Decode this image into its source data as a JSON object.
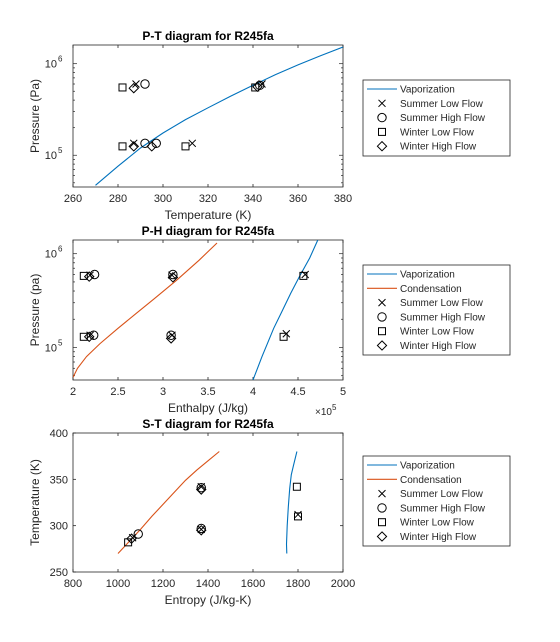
{
  "chart_data": [
    {
      "type": "scatter",
      "title": "P-T diagram for R245fa",
      "xlabel": "Temperature (K)",
      "ylabel": "Pressure (Pa)",
      "xlim": [
        260,
        380
      ],
      "ylim": [
        45000,
        1600000
      ],
      "yscale": "log",
      "xticks": [
        "260",
        "280",
        "300",
        "320",
        "340",
        "360",
        "380"
      ],
      "yticks": [
        {
          "base": "10",
          "exp": "5",
          "value": 100000
        },
        {
          "base": "10",
          "exp": "6",
          "value": 1000000
        }
      ],
      "legend_position": "right",
      "grid": false,
      "series": [
        {
          "name": "Vaporization",
          "kind": "line",
          "color": "#0072BD",
          "x": [
            270,
            280,
            290,
            300,
            310,
            320,
            330,
            340,
            350,
            360,
            370,
            380
          ],
          "y": [
            47000,
            76000,
            120000,
            175000,
            245000,
            330000,
            440000,
            580000,
            760000,
            970000,
            1220000,
            1520000
          ]
        },
        {
          "name": "Summer Low Flow",
          "kind": "marker",
          "marker": "x",
          "x": [
            288,
            287,
            313,
            344
          ],
          "y": [
            600000,
            135000,
            135000,
            600000
          ]
        },
        {
          "name": "Summer High Flow",
          "kind": "marker",
          "marker": "o",
          "x": [
            292,
            292,
            297,
            343
          ],
          "y": [
            600000,
            135000,
            135000,
            580000
          ]
        },
        {
          "name": "Winter Low Flow",
          "kind": "marker",
          "marker": "square",
          "x": [
            282,
            282,
            310,
            341
          ],
          "y": [
            550000,
            125000,
            125000,
            550000
          ]
        },
        {
          "name": "Winter High Flow",
          "kind": "marker",
          "marker": "diamond",
          "x": [
            287,
            287,
            295,
            342
          ],
          "y": [
            540000,
            125000,
            125000,
            560000
          ]
        }
      ]
    },
    {
      "type": "scatter",
      "title": "P-H diagram for R245fa",
      "xlabel": "Enthalpy (J/kg)",
      "ylabel": "Pressure (pa)",
      "xlim": [
        200000,
        500000
      ],
      "ylim": [
        45000,
        1400000
      ],
      "yscale": "log",
      "xticks": [
        "2",
        "2.5",
        "3",
        "3.5",
        "4",
        "4.5",
        "5"
      ],
      "x_multiplier": {
        "base": "×10",
        "exp": "5"
      },
      "yticks": [
        {
          "base": "10",
          "exp": "5",
          "value": 100000
        },
        {
          "base": "10",
          "exp": "6",
          "value": 1000000
        }
      ],
      "legend_position": "right",
      "grid": false,
      "series": [
        {
          "name": "Vaporization",
          "kind": "line",
          "color": "#0072BD",
          "x": [
            400000,
            405000,
            410000,
            416000,
            423000,
            432000,
            442000,
            452000,
            463000,
            472000
          ],
          "y": [
            45000,
            60000,
            80000,
            110000,
            160000,
            240000,
            380000,
            580000,
            900000,
            1400000
          ]
        },
        {
          "name": "Condensation",
          "kind": "line",
          "color": "#D95319",
          "x": [
            200000,
            205000,
            215000,
            230000,
            250000,
            270000,
            290000,
            315000,
            340000,
            360000
          ],
          "y": [
            48000,
            60000,
            80000,
            110000,
            160000,
            230000,
            330000,
            520000,
            850000,
            1300000
          ]
        },
        {
          "name": "Summer Low Flow",
          "kind": "marker",
          "marker": "x",
          "x": [
            219000,
            219000,
            310000,
            310000,
            437000,
            458000
          ],
          "y": [
            590000,
            135000,
            590000,
            135000,
            140000,
            600000
          ]
        },
        {
          "name": "Summer High Flow",
          "kind": "marker",
          "marker": "o",
          "x": [
            224000,
            223000,
            311000,
            309000
          ],
          "y": [
            600000,
            135000,
            600000,
            135000
          ]
        },
        {
          "name": "Winter Low Flow",
          "kind": "marker",
          "marker": "square",
          "x": [
            212000,
            212000,
            434000,
            456000
          ],
          "y": [
            580000,
            130000,
            130000,
            580000
          ]
        },
        {
          "name": "Winter High Flow",
          "kind": "marker",
          "marker": "diamond",
          "x": [
            218000,
            218000,
            311000,
            309000
          ],
          "y": [
            570000,
            130000,
            560000,
            125000
          ]
        }
      ]
    },
    {
      "type": "scatter",
      "title": "S-T diagram for R245fa",
      "xlabel": "Entropy (J/kg-K)",
      "ylabel": "Temperature (K)",
      "xlim": [
        800,
        2000
      ],
      "ylim": [
        250,
        400
      ],
      "xticks": [
        "800",
        "1000",
        "1200",
        "1400",
        "1600",
        "1800",
        "2000"
      ],
      "yticks": [
        "250",
        "300",
        "350",
        "400"
      ],
      "legend_position": "right",
      "grid": false,
      "series": [
        {
          "name": "Vaporization",
          "kind": "line",
          "color": "#0072BD",
          "x": [
            1750,
            1749,
            1752,
            1757,
            1763,
            1770,
            1780,
            1795
          ],
          "y": [
            270,
            280,
            300,
            320,
            340,
            355,
            365,
            380
          ]
        },
        {
          "name": "Condensation",
          "kind": "line",
          "color": "#D95319",
          "x": [
            1000,
            1050,
            1100,
            1150,
            1200,
            1250,
            1300,
            1350,
            1400,
            1450
          ],
          "y": [
            270,
            283,
            296,
            310,
            323,
            336,
            349,
            360,
            370,
            380
          ]
        },
        {
          "name": "Summer Low Flow",
          "kind": "marker",
          "marker": "x",
          "x": [
            1065,
            1370,
            1370,
            1800
          ],
          "y": [
            287,
            342,
            296,
            312
          ]
        },
        {
          "name": "Summer High Flow",
          "kind": "marker",
          "marker": "o",
          "x": [
            1090,
            1370,
            1370
          ],
          "y": [
            291,
            341,
            297
          ]
        },
        {
          "name": "Winter Low Flow",
          "kind": "marker",
          "marker": "square",
          "x": [
            1045,
            1795,
            1800
          ],
          "y": [
            282,
            342,
            310
          ]
        },
        {
          "name": "Winter High Flow",
          "kind": "marker",
          "marker": "diamond",
          "x": [
            1060,
            1370,
            1370
          ],
          "y": [
            286,
            339,
            295
          ]
        }
      ]
    }
  ]
}
